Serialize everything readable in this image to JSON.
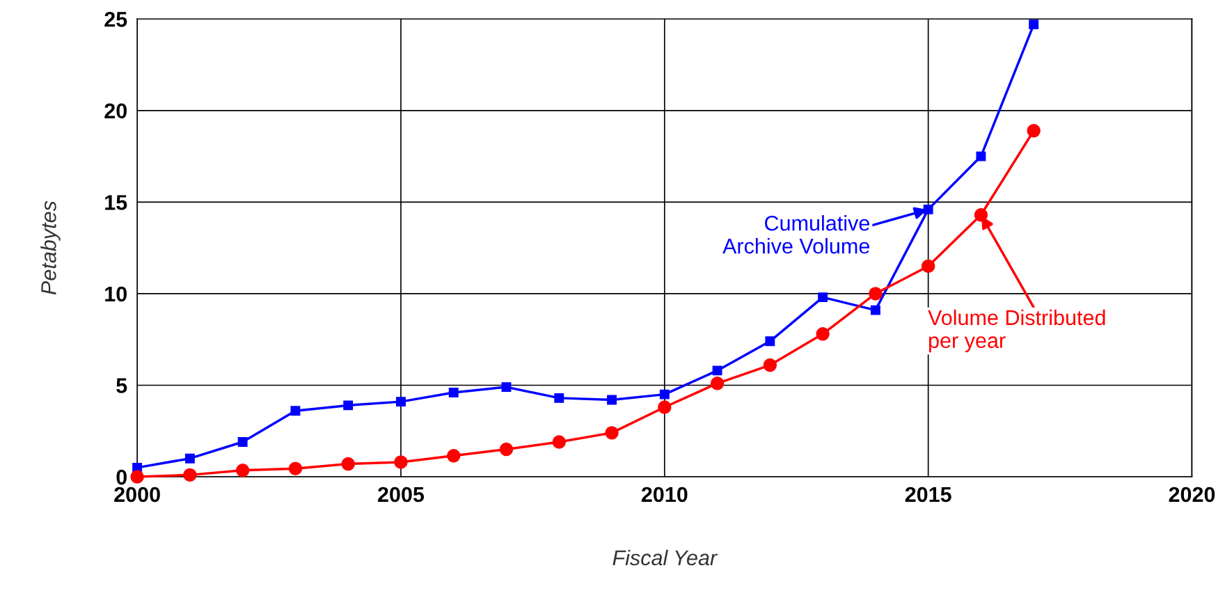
{
  "chart_data": {
    "type": "line",
    "xlabel": "Fiscal Year",
    "ylabel": "Petabytes",
    "x": [
      2000,
      2001,
      2002,
      2003,
      2004,
      2005,
      2006,
      2007,
      2008,
      2009,
      2010,
      2011,
      2012,
      2013,
      2014,
      2015,
      2016,
      2017
    ],
    "series": [
      {
        "color": "#0000ff",
        "marker": "square",
        "values": [
          0.5,
          1.0,
          1.9,
          3.6,
          3.9,
          4.1,
          4.6,
          4.9,
          4.3,
          4.2,
          4.5,
          5.8,
          7.4,
          9.8,
          9.1,
          14.6,
          17.5,
          24.7
        ]
      },
      {
        "color": "#ff0000",
        "marker": "circle",
        "values": [
          0.0,
          0.1,
          0.35,
          0.45,
          0.7,
          0.8,
          1.15,
          1.5,
          1.9,
          2.4,
          3.8,
          5.1,
          6.1,
          7.8,
          10.0,
          11.5,
          14.3,
          18.9
        ]
      }
    ],
    "annotations": [
      {
        "text": "Cumulative\nArchive Volume",
        "x": 2015,
        "y": 14.6
      },
      {
        "text": "Volume Distributed\nper year",
        "x": 2016,
        "y": 14.3
      }
    ],
    "xlim": [
      2000,
      2020
    ],
    "xticks": [
      2000,
      2005,
      2010,
      2015,
      2020
    ],
    "ylim": [
      0,
      25
    ],
    "yticks": [
      0,
      5,
      10,
      15,
      20,
      25
    ],
    "grid": true,
    "line_style": "solid",
    "legend": false
  }
}
